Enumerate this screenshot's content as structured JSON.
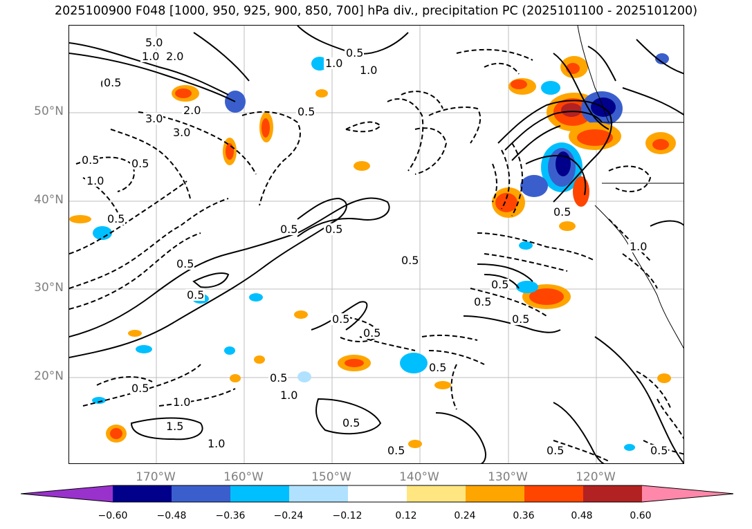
{
  "title": "2025100900 F048 [1000, 950, 925, 900, 850, 700] hPa div., precipitation PC (2025101100 - 2025101200)",
  "lat_labels": [
    "50°N",
    "40°N",
    "30°N",
    "20°N"
  ],
  "lon_labels": [
    "170°W",
    "160°W",
    "150°W",
    "140°W",
    "130°W",
    "120°W"
  ],
  "colorbar": {
    "ticks": [
      "−0.60",
      "−0.48",
      "−0.36",
      "−0.24",
      "−0.12",
      "0.12",
      "0.24",
      "0.36",
      "0.48",
      "0.60"
    ],
    "colors": [
      "#9932cc",
      "#00008b",
      "#3a5fcd",
      "#00bfff",
      "#b0e2ff",
      "#ffffff",
      "#ffe680",
      "#ffa500",
      "#ff4500",
      "#b22222",
      "#ff88aa"
    ]
  },
  "contour_labels": [
    "5.0",
    "1.0",
    "0.5",
    "2.0",
    "0.5",
    "3.0",
    "2.0",
    "3.0",
    "0.5",
    "0.5",
    "1.0",
    "0.5",
    "0.5",
    "1.0",
    "0.5",
    "1.0",
    "0.5",
    "0.5",
    "0.5",
    "0.5",
    "0.5",
    "0.5",
    "0.5",
    "0.5",
    "0.5",
    "0.5",
    "0.5",
    "1.0",
    "0.5",
    "0.5",
    "0.5",
    "1.0",
    "1.5",
    "1.0",
    "0.5",
    "0.5",
    "0.5",
    "0.5",
    "1.0"
  ]
}
